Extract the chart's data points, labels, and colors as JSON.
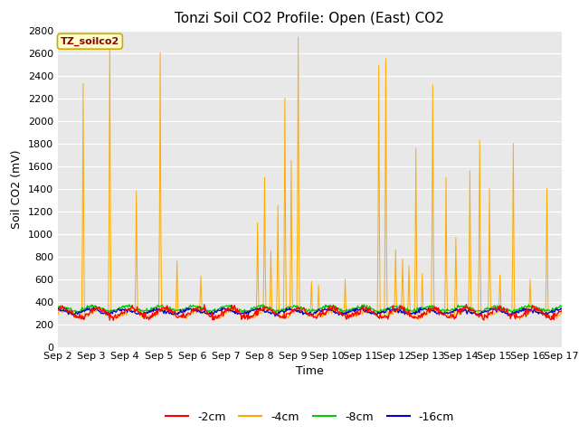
{
  "title": "Tonzi Soil CO2 Profile: Open (East) CO2",
  "ylabel": "Soil CO2 (mV)",
  "xlabel": "Time",
  "watermark_label": "TZ_soilco2",
  "ylim": [
    0,
    2800
  ],
  "yticks": [
    0,
    200,
    400,
    600,
    800,
    1000,
    1200,
    1400,
    1600,
    1800,
    2000,
    2200,
    2400,
    2600,
    2800
  ],
  "xtick_labels": [
    "Sep 2",
    "Sep 3",
    "Sep 4",
    "Sep 5",
    "Sep 6",
    "Sep 7",
    "Sep 8",
    "Sep 9",
    "Sep 10",
    "Sep 11",
    "Sep 12",
    "Sep 13",
    "Sep 14",
    "Sep 15",
    "Sep 16",
    "Sep 17"
  ],
  "colors": {
    "2cm": "#ff0000",
    "4cm": "#ffaa00",
    "8cm": "#00cc00",
    "16cm": "#0000cc"
  },
  "legend_labels": [
    "-2cm",
    "-4cm",
    "-8cm",
    "-16cm"
  ],
  "background_color": "#e8e8e8",
  "fig_background": "#ffffff",
  "title_fontsize": 11,
  "axis_label_fontsize": 9,
  "tick_fontsize": 8,
  "watermark_fontsize": 8,
  "watermark_color": "#8b0000",
  "watermark_bg": "#ffffcc",
  "watermark_edge": "#ccaa00"
}
